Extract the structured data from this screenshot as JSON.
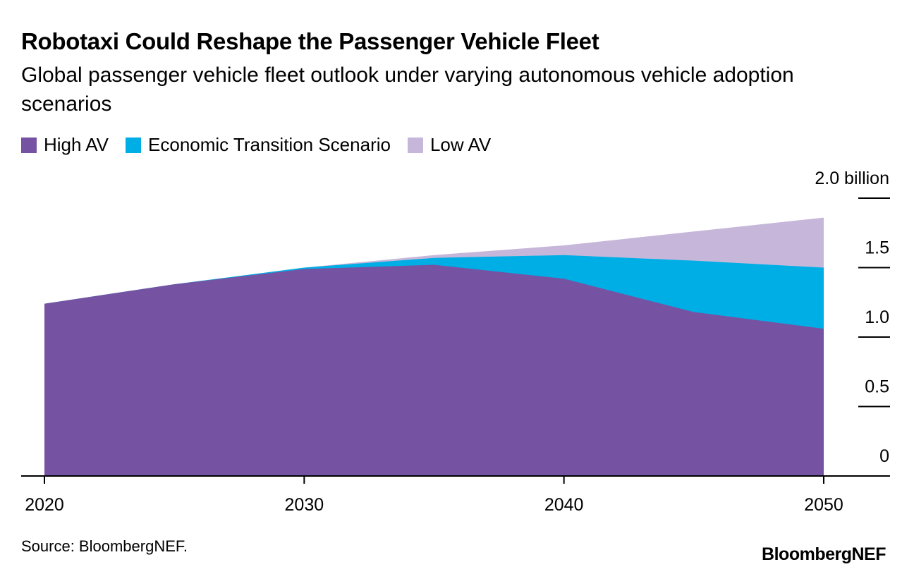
{
  "title": "Robotaxi Could Reshape the Passenger Vehicle Fleet",
  "subtitle": "Global passenger vehicle fleet outlook under varying autonomous vehicle adoption scenarios",
  "source": "Source: BloombergNEF.",
  "brand": "BloombergNEF",
  "chart_data": {
    "type": "area",
    "x": [
      2020,
      2025,
      2030,
      2035,
      2040,
      2045,
      2050
    ],
    "series": [
      {
        "name": "High AV",
        "color": "#7552a2",
        "values": [
          1.24,
          1.38,
          1.49,
          1.52,
          1.42,
          1.18,
          1.06
        ]
      },
      {
        "name": "Economic Transition Scenario",
        "color": "#00aee6",
        "values": [
          1.24,
          1.38,
          1.5,
          1.57,
          1.59,
          1.55,
          1.5
        ]
      },
      {
        "name": "Low AV",
        "color": "#c6b7da",
        "values": [
          1.24,
          1.38,
          1.5,
          1.59,
          1.66,
          1.76,
          1.86
        ]
      }
    ],
    "xlim": [
      2020,
      2050
    ],
    "ylim": [
      0,
      2.0
    ],
    "y_ticks": [
      0,
      0.5,
      1.0,
      1.5,
      2.0
    ],
    "y_tick_labels": [
      "0",
      "0.5",
      "1.0",
      "1.5",
      "2.0 billion"
    ],
    "x_ticks": [
      2020,
      2030,
      2040,
      2050
    ],
    "x_tick_labels": [
      "2020",
      "2030",
      "2040",
      "2050"
    ],
    "legend_position": "top-left",
    "y_axis_position": "right",
    "grid": false
  }
}
